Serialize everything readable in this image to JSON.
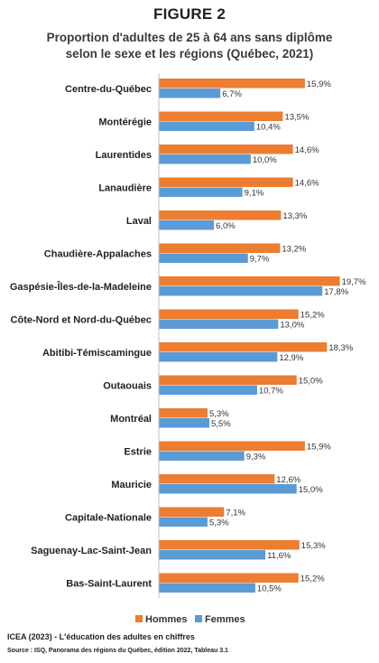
{
  "figure_label": "FIGURE 2",
  "chart_data": {
    "type": "bar",
    "orientation": "horizontal",
    "title": "Proportion d'adultes de 25 à 64 ans sans diplôme selon le sexe et les régions (Québec, 2021)",
    "title_lines": [
      "Proportion d'adultes de 25 à 64 ans sans diplôme",
      "selon le sexe et les régions (Québec, 2021)"
    ],
    "categories": [
      "Centre-du-Québec",
      "Montérégie",
      "Laurentides",
      "Lanaudière",
      "Laval",
      "Chaudière-Appalaches",
      "Gaspésie-Îles-de-la-Madeleine",
      "Côte-Nord et Nord-du-Québec",
      "Abitibi-Témiscamingue",
      "Outaouais",
      "Montréal",
      "Estrie",
      "Mauricie",
      "Capitale-Nationale",
      "Saguenay-Lac-Saint-Jean",
      "Bas-Saint-Laurent"
    ],
    "series": [
      {
        "name": "Hommes",
        "color": "#ED7D31",
        "values": [
          15.9,
          13.5,
          14.6,
          14.6,
          13.3,
          13.2,
          19.7,
          15.2,
          18.3,
          15.0,
          5.3,
          15.9,
          12.6,
          7.1,
          15.3,
          15.2
        ],
        "labels": [
          "15,9%",
          "13,5%",
          "14,6%",
          "14,6%",
          "13,3%",
          "13,2%",
          "19,7%",
          "15,2%",
          "18,3%",
          "15,0%",
          "5,3%",
          "15,9%",
          "12,6%",
          "7,1%",
          "15,3%",
          "15,2%"
        ]
      },
      {
        "name": "Femmes",
        "color": "#5B9BD5",
        "values": [
          6.7,
          10.4,
          10.0,
          9.1,
          6.0,
          9.7,
          17.8,
          13.0,
          12.9,
          10.7,
          5.5,
          9.3,
          15.0,
          5.3,
          11.6,
          10.5
        ],
        "labels": [
          "6,7%",
          "10,4%",
          "10,0%",
          "9,1%",
          "6,0%",
          "9,7%",
          "17,8%",
          "13,0%",
          "12,9%",
          "10,7%",
          "5,5%",
          "9,3%",
          "15,0%",
          "5,3%",
          "11,6%",
          "10,5%"
        ]
      }
    ],
    "unit": "%",
    "xlim": [
      0,
      22
    ],
    "grid": false,
    "legend_position": "bottom"
  },
  "footer": {
    "credit": "ICEA (2023) - L'éducation des adultes en chiffres",
    "source": "Source : ISQ, Panorama  des régions du Québec, édition 2022, Tableau 3.1"
  }
}
